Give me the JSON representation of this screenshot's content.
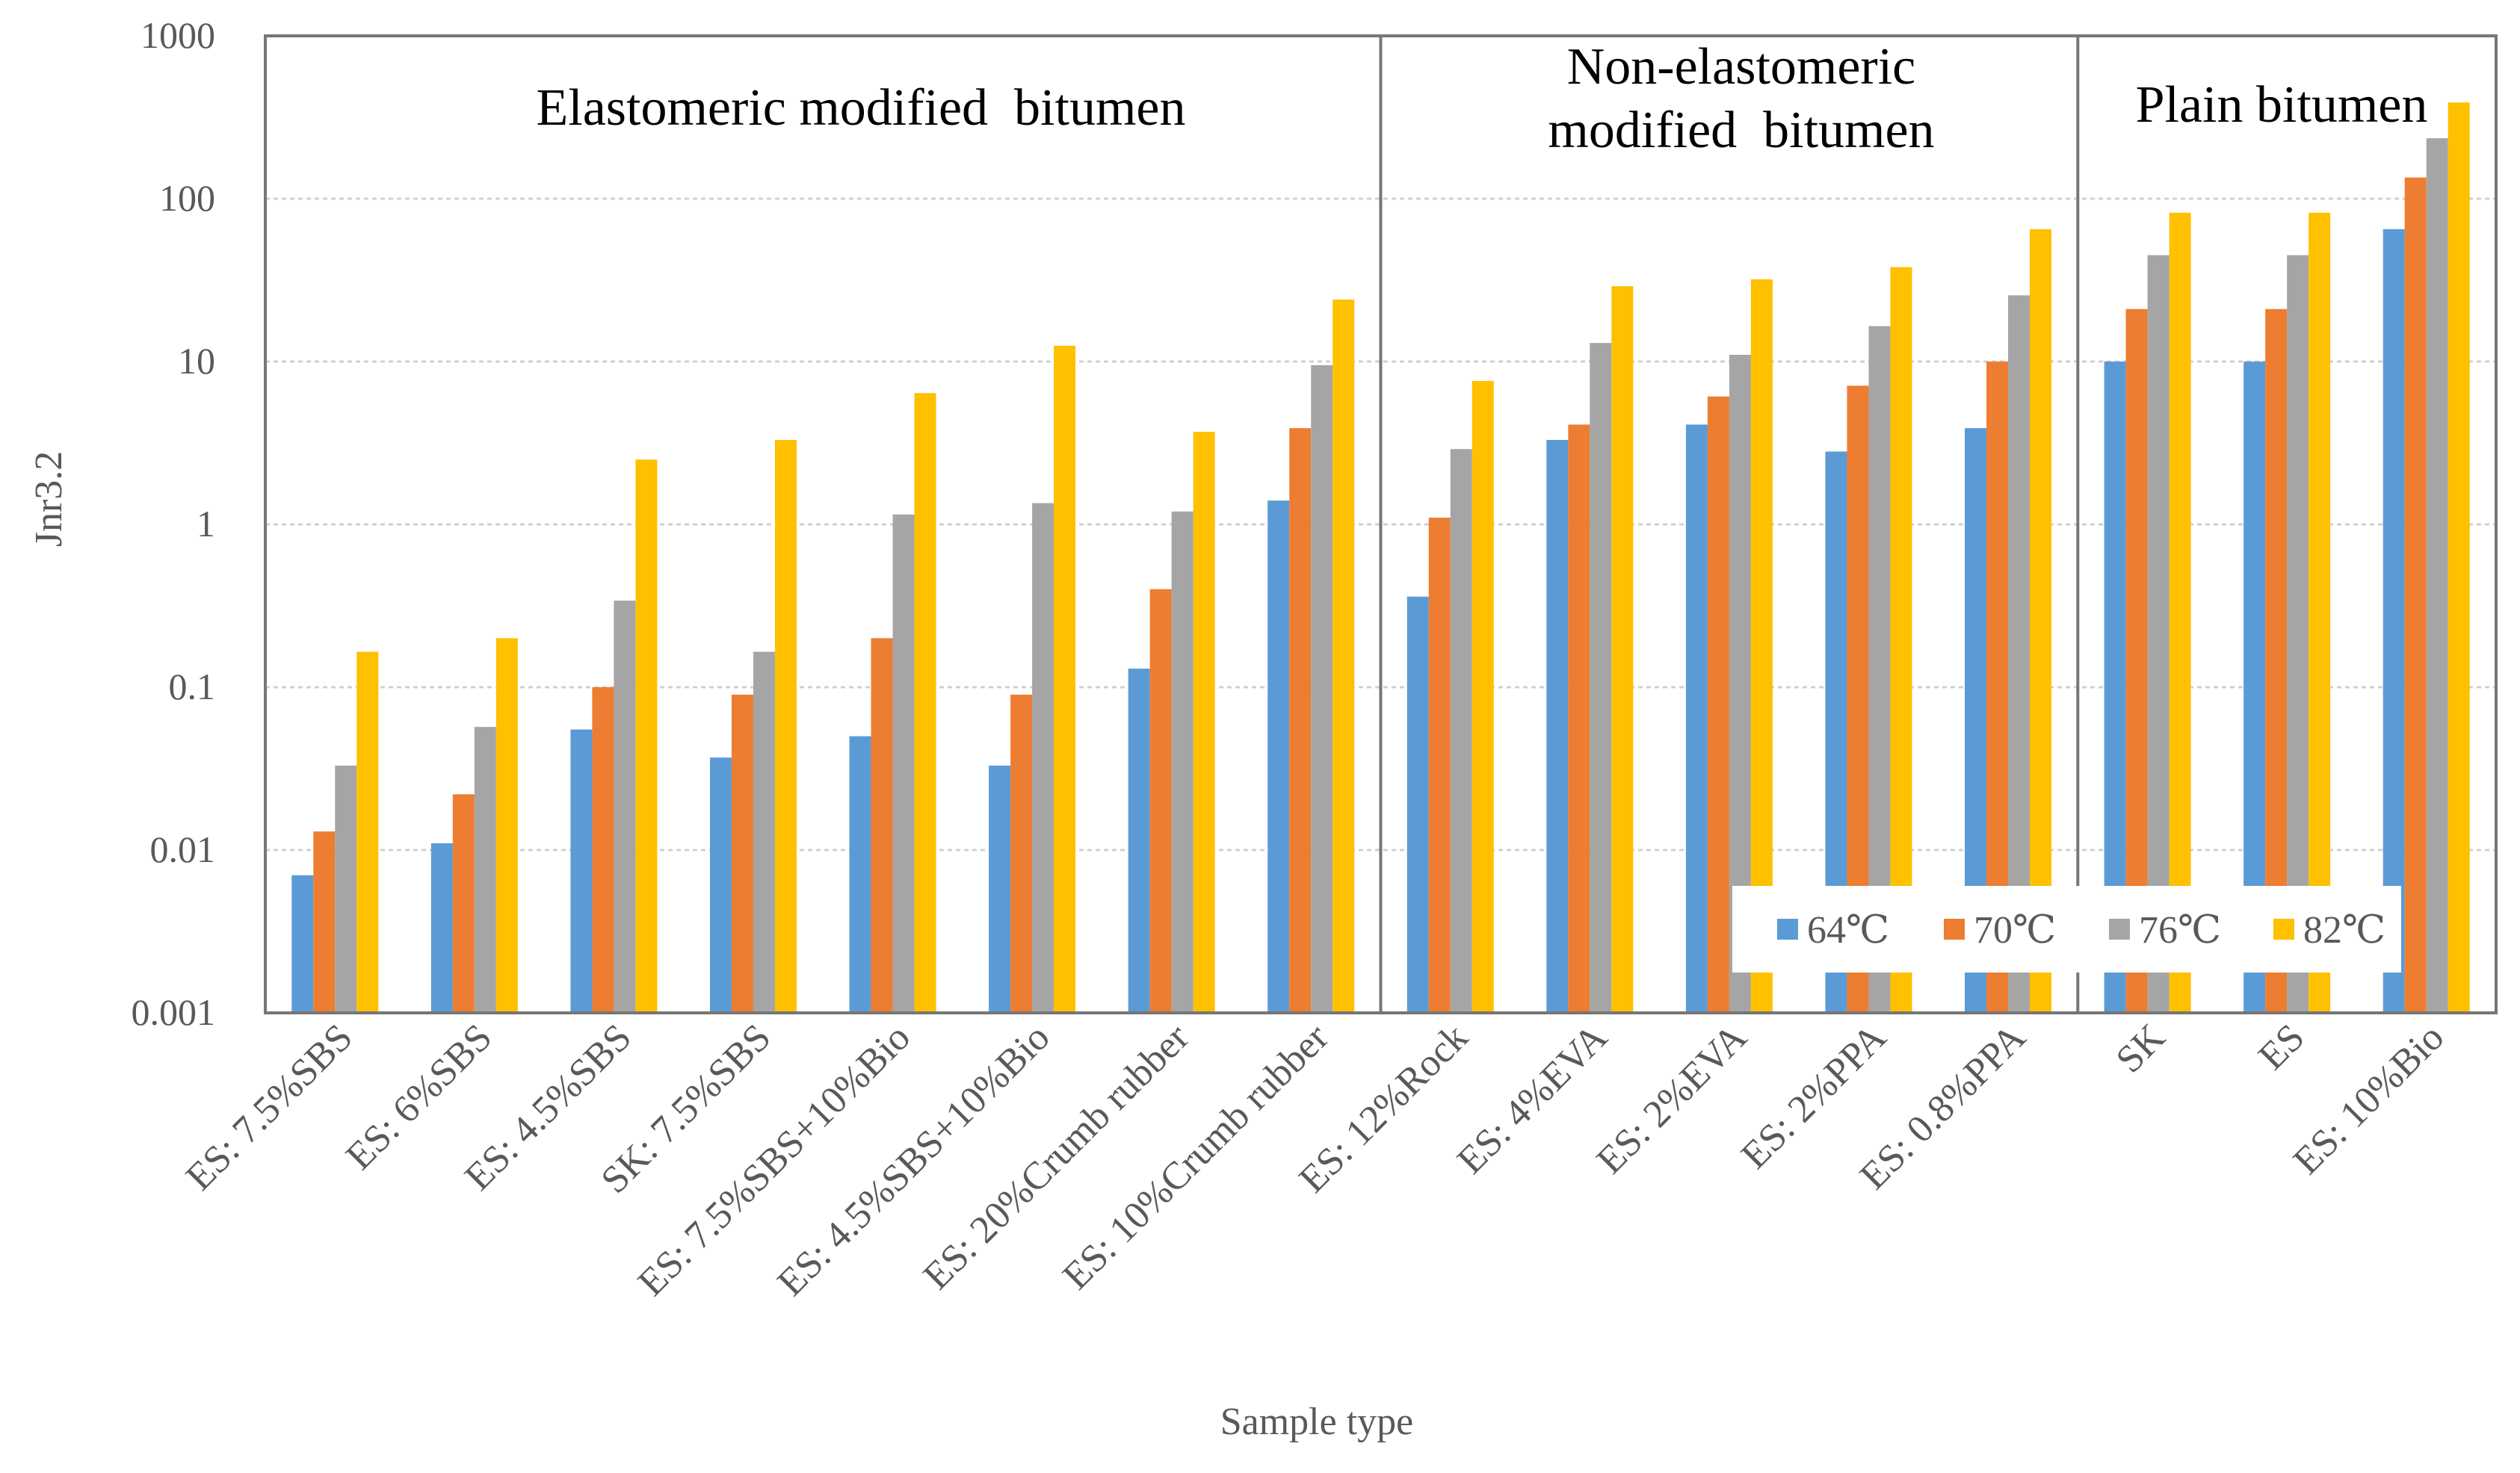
{
  "chart_data": {
    "type": "bar",
    "yscale": "log",
    "ylim": [
      0.001,
      1000
    ],
    "ylabel": "Jnr3.2",
    "xlabel": "Sample type",
    "y_ticks": [
      "0.001",
      "0.01",
      "0.1",
      "1",
      "10",
      "100",
      "1000"
    ],
    "y_tick_values": [
      0.001,
      0.01,
      0.1,
      1,
      10,
      100,
      1000
    ],
    "legend_position": "bottom-right inside plot",
    "categories": [
      "ES: 7.5%SBS",
      "ES: 6%SBS",
      "ES: 4.5%SBS",
      "SK: 7.5%SBS",
      "ES: 7.5%SBS+10%Bio",
      "ES: 4.5%SBS+10%Bio",
      "ES: 20%Crumb rubber",
      "ES: 10%Crumb rubber",
      "ES: 12%Rock",
      "ES: 4%EVA",
      "ES: 2%EVA",
      "ES: 2%PPA",
      "ES: 0.8%PPA",
      "SK",
      "ES",
      "ES: 10%Bio"
    ],
    "groups": [
      {
        "label_lines": [
          "Elastomeric modified  bitumen"
        ],
        "start": 0,
        "end": 7
      },
      {
        "label_lines": [
          "Non-elastomeric",
          "modified  bitumen"
        ],
        "start": 8,
        "end": 12
      },
      {
        "label_lines": [
          "Plain bitumen"
        ],
        "start": 13,
        "end": 15
      }
    ],
    "series": [
      {
        "name": "64℃",
        "color": "#5B9BD5",
        "values": [
          0.007,
          0.011,
          0.055,
          0.037,
          0.05,
          0.033,
          0.13,
          1.4,
          0.36,
          3.3,
          4.1,
          2.8,
          3.9,
          10,
          10,
          65
        ]
      },
      {
        "name": "70℃",
        "color": "#ED7D31",
        "values": [
          0.013,
          0.022,
          0.1,
          0.09,
          0.2,
          0.09,
          0.4,
          3.9,
          1.1,
          4.1,
          6.1,
          7.1,
          10,
          21,
          21,
          135
        ]
      },
      {
        "name": "76℃",
        "color": "#A5A5A5",
        "values": [
          0.033,
          0.057,
          0.34,
          0.165,
          1.15,
          1.35,
          1.2,
          9.5,
          2.9,
          13,
          11,
          16.5,
          25.5,
          45,
          45,
          235
        ]
      },
      {
        "name": "82℃",
        "color": "#FFC000",
        "values": [
          0.165,
          0.2,
          2.5,
          3.3,
          6.4,
          12.5,
          3.7,
          24,
          7.6,
          29,
          32,
          38,
          65,
          82,
          82,
          390
        ]
      }
    ]
  }
}
